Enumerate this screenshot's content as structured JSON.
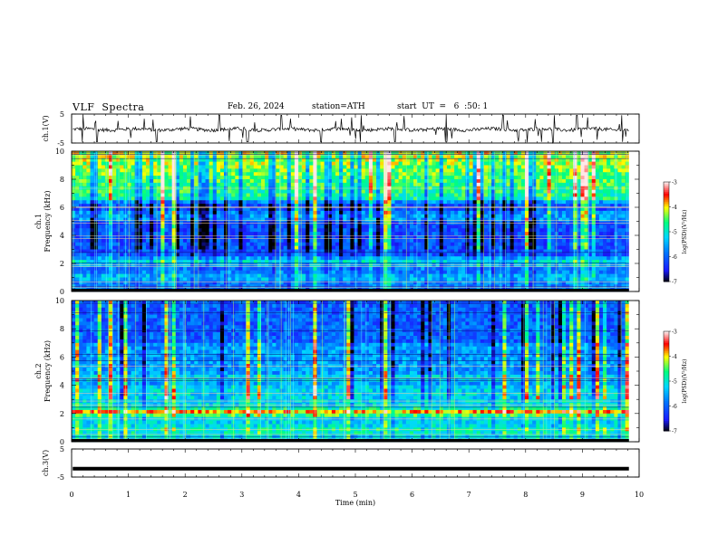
{
  "header": {
    "title": "VLF  Spectra",
    "date": "Feb. 26, 2024",
    "station": "station=ATH",
    "start": "start  UT  =   6  :50: 1"
  },
  "colorbar": {
    "label": "log(PSD)(V²/Hz)",
    "ticks": [
      "-3",
      "-4",
      "-5",
      "-6",
      "-7"
    ],
    "colors": [
      "#000000",
      "#1a1aff",
      "#00d7ff",
      "#00ff7f",
      "#ffff00",
      "#ff0000",
      "#ffe8e8"
    ]
  },
  "chart_data": [
    {
      "type": "line",
      "name": "ch1-waveform",
      "ylabel": "ch.1(V)",
      "ylim": [
        -5,
        5
      ],
      "yticks": [
        "5",
        "-5"
      ],
      "xlim": [
        0,
        10
      ],
      "baseline": -0.3,
      "burst_times": [
        0.2,
        0.45,
        1.5,
        2.6,
        3.1,
        3.7,
        4.4,
        5.1,
        5.7,
        6.6,
        7.6,
        8.5,
        8.9,
        9.7
      ]
    },
    {
      "type": "heatmap",
      "name": "ch1-spectrogram",
      "ylabel": "Frequency (kHz)",
      "channel_label": "ch.1",
      "ylim": [
        0,
        10
      ],
      "yticks": [
        "10",
        "8",
        "6",
        "4",
        "2",
        "0"
      ],
      "xlim": [
        0,
        10
      ],
      "color_range": [
        -7,
        -3
      ]
    },
    {
      "type": "heatmap",
      "name": "ch2-spectrogram",
      "ylabel": "Frequency (kHz)",
      "channel_label": "ch.2",
      "ylim": [
        0,
        10
      ],
      "yticks": [
        "10",
        "8",
        "6",
        "4",
        "2",
        "0"
      ],
      "xlim": [
        0,
        10
      ],
      "color_range": [
        -7,
        -3
      ]
    },
    {
      "type": "line",
      "name": "ch3-waveform",
      "ylabel": "ch.3(V)",
      "ylim": [
        -5,
        5
      ],
      "yticks": [
        "5",
        "-5"
      ],
      "xlim": [
        0,
        10
      ],
      "baseline": -2.0,
      "xlabel": "Time  (min)",
      "xticks": [
        "0",
        "1",
        "2",
        "3",
        "4",
        "5",
        "6",
        "7",
        "8",
        "9",
        "10"
      ]
    }
  ]
}
